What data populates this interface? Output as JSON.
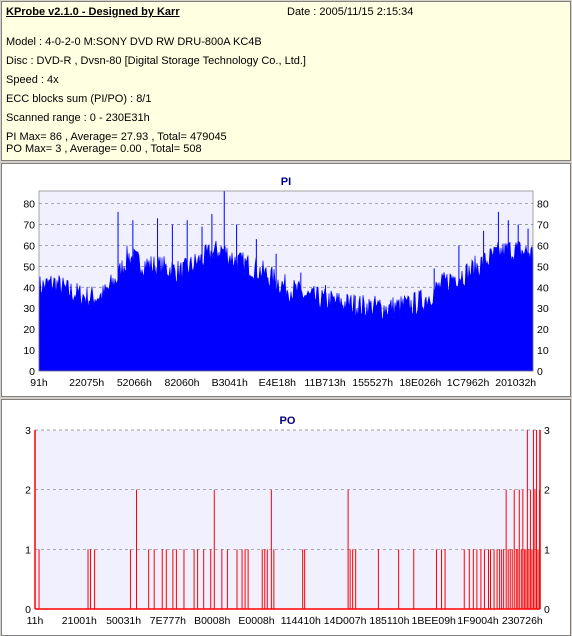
{
  "header": {
    "title": "KProbe v2.1.0 - Designed by Karr",
    "date": "Date : 2005/11/15 2:15:34",
    "lines": [
      "Model : 4-0-2-0 M:SONY    DVD RW DRU-800A  KC4B",
      "Disc : DVD-R , Dvsn-80 [Digital Storage Technology Co., Ltd.]",
      "Speed : 4x",
      "ECC blocks sum (PI/PO) : 8/1",
      "Scanned range : 0 - 230E31h",
      "PI Max= 86 , Average= 27.93 , Total= 479045",
      "PO Max= 3 , Average= 0.00 , Total= 508"
    ]
  },
  "colors": {
    "pi_fill": "#0000ff",
    "po_line": "#ff0000",
    "plot_bg": "#f0f0ff",
    "grid": "#808080"
  },
  "chart_data": [
    {
      "type": "area",
      "title": "PI",
      "ylim": [
        0,
        86
      ],
      "yticks": [
        0,
        10,
        20,
        30,
        40,
        50,
        60,
        70,
        80
      ],
      "xticks": [
        "91h",
        "22075h",
        "52066h",
        "82060h",
        "B3041h",
        "E4E18h",
        "11B713h",
        "155527h",
        "18E026h",
        "1C7962h",
        "201032h"
      ],
      "grid": true,
      "envelope": [
        [
          0,
          40
        ],
        [
          3,
          42
        ],
        [
          6,
          38
        ],
        [
          10,
          35
        ],
        [
          13,
          36
        ],
        [
          16,
          45
        ],
        [
          18,
          55
        ],
        [
          20,
          52
        ],
        [
          23,
          50
        ],
        [
          26,
          49
        ],
        [
          29,
          47
        ],
        [
          32,
          52
        ],
        [
          35,
          56
        ],
        [
          37,
          58
        ],
        [
          40,
          52
        ],
        [
          43,
          50
        ],
        [
          46,
          46
        ],
        [
          50,
          40
        ],
        [
          55,
          35
        ],
        [
          60,
          33
        ],
        [
          65,
          31
        ],
        [
          70,
          30
        ],
        [
          75,
          31
        ],
        [
          78,
          34
        ],
        [
          81,
          40
        ],
        [
          84,
          45
        ],
        [
          87,
          47
        ],
        [
          90,
          52
        ],
        [
          93,
          56
        ],
        [
          96,
          58
        ],
        [
          98,
          57
        ],
        [
          100,
          56
        ]
      ],
      "spikes": [
        [
          16,
          76
        ],
        [
          19,
          72
        ],
        [
          24,
          73
        ],
        [
          27,
          70
        ],
        [
          30,
          72
        ],
        [
          33,
          69
        ],
        [
          35,
          75
        ],
        [
          37.5,
          86
        ],
        [
          40,
          70
        ],
        [
          44,
          63
        ],
        [
          48,
          56
        ],
        [
          53,
          47
        ],
        [
          58,
          41
        ],
        [
          64,
          36
        ],
        [
          69,
          34
        ],
        [
          74,
          36
        ],
        [
          80,
          49
        ],
        [
          85,
          60
        ],
        [
          90,
          67
        ],
        [
          93,
          76
        ],
        [
          95,
          72
        ],
        [
          97,
          70
        ],
        [
          99,
          68
        ]
      ]
    },
    {
      "type": "bar",
      "title": "PO",
      "ylim": [
        0,
        3
      ],
      "yticks": [
        0,
        1,
        2,
        3
      ],
      "xticks": [
        "11h",
        "21001h",
        "50031h",
        "7E777h",
        "B0008h",
        "E0008h",
        "114410h",
        "14D007h",
        "185110h",
        "1BEE09h",
        "1F9004h",
        "230726h"
      ],
      "grid": true,
      "bars": [
        [
          0.8,
          1
        ],
        [
          10.5,
          1
        ],
        [
          11.0,
          1
        ],
        [
          11.8,
          1
        ],
        [
          18.9,
          1
        ],
        [
          20.1,
          2
        ],
        [
          22.5,
          1
        ],
        [
          23.6,
          1
        ],
        [
          25.2,
          1
        ],
        [
          26.0,
          1
        ],
        [
          27.3,
          1
        ],
        [
          28.0,
          1
        ],
        [
          29.5,
          1
        ],
        [
          31.5,
          1
        ],
        [
          32.2,
          1
        ],
        [
          33.4,
          1
        ],
        [
          34.8,
          1
        ],
        [
          35.5,
          2
        ],
        [
          37.0,
          1
        ],
        [
          38.1,
          1
        ],
        [
          40.0,
          1
        ],
        [
          41.0,
          1
        ],
        [
          41.6,
          1
        ],
        [
          42.2,
          1
        ],
        [
          45.0,
          1
        ],
        [
          45.5,
          1
        ],
        [
          46.0,
          1
        ],
        [
          46.8,
          2
        ],
        [
          47.3,
          1
        ],
        [
          53.0,
          1
        ],
        [
          53.4,
          1
        ],
        [
          62.0,
          2
        ],
        [
          62.4,
          1
        ],
        [
          62.9,
          1
        ],
        [
          63.5,
          1
        ],
        [
          68.0,
          1
        ],
        [
          72.0,
          1
        ],
        [
          75.0,
          1
        ],
        [
          79.5,
          1
        ],
        [
          80.5,
          1
        ],
        [
          81.2,
          1
        ],
        [
          85.0,
          1
        ],
        [
          86.0,
          1
        ],
        [
          86.8,
          1
        ],
        [
          87.5,
          1
        ],
        [
          88.3,
          1
        ],
        [
          89.0,
          1
        ],
        [
          89.8,
          1
        ],
        [
          90.2,
          1
        ],
        [
          90.9,
          1
        ],
        [
          91.5,
          1
        ],
        [
          92.0,
          1
        ],
        [
          92.4,
          1
        ],
        [
          92.8,
          1
        ],
        [
          93.3,
          2
        ],
        [
          93.7,
          1
        ],
        [
          94.1,
          1
        ],
        [
          94.5,
          1
        ],
        [
          94.9,
          2
        ],
        [
          95.3,
          1
        ],
        [
          95.6,
          1
        ],
        [
          95.9,
          2
        ],
        [
          96.3,
          1
        ],
        [
          96.6,
          2
        ],
        [
          96.9,
          1
        ],
        [
          97.2,
          1
        ],
        [
          97.5,
          3
        ],
        [
          97.8,
          1
        ],
        [
          98.1,
          2
        ],
        [
          98.4,
          1
        ],
        [
          98.7,
          3
        ],
        [
          99.0,
          2
        ],
        [
          99.3,
          3
        ],
        [
          99.6,
          1
        ],
        [
          99.9,
          2
        ]
      ]
    }
  ]
}
